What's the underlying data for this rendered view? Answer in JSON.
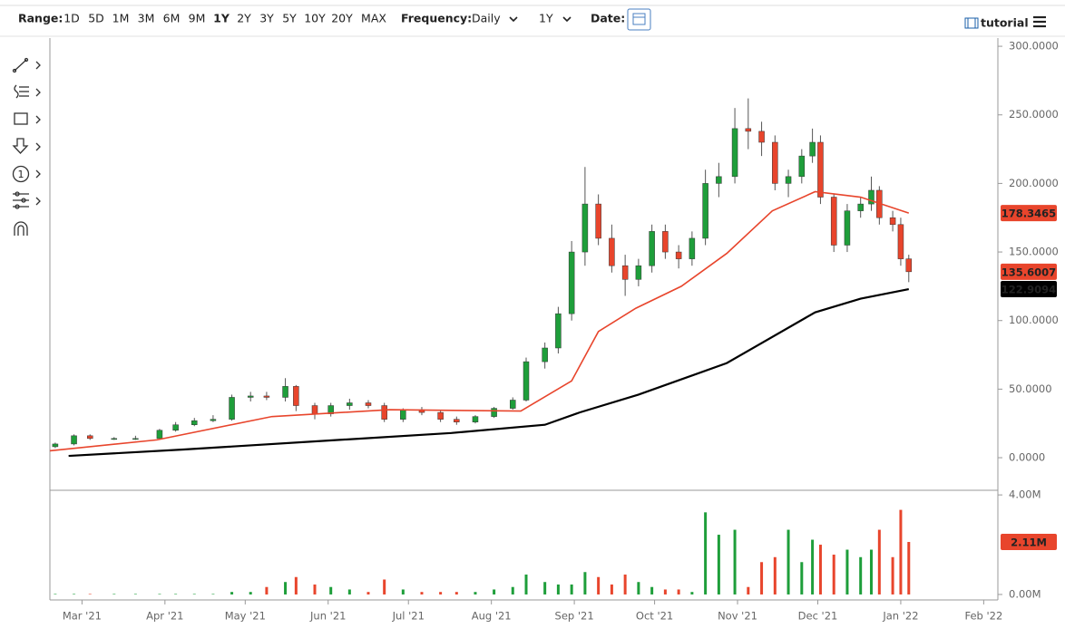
{
  "toolbar": {
    "range_label": "Range:",
    "ranges": [
      "1D",
      "5D",
      "1M",
      "3M",
      "6M",
      "9M",
      "1Y",
      "2Y",
      "3Y",
      "5Y",
      "10Y",
      "20Y",
      "MAX"
    ],
    "selected_range": "1Y",
    "frequency_label": "Frequency:",
    "frequency": "Daily",
    "period": "1Y",
    "date_label": "Date:",
    "tutorial": "tutorial"
  },
  "left_tools": {
    "counter_icon": "1"
  },
  "chart_data": [
    {
      "type": "candlestick",
      "up_color": "#1e9e3a",
      "down_color": "#e8452c",
      "xlim": [
        0,
        354.3
      ],
      "ylim": [
        -23.1,
        306
      ],
      "yticks": [
        {
          "value": 0,
          "label": "0.0000"
        },
        {
          "value": 50,
          "label": "50.0000"
        },
        {
          "value": 100,
          "label": "100.0000"
        },
        {
          "value": 150,
          "label": "150.0000"
        },
        {
          "value": 200,
          "label": "200.0000"
        },
        {
          "value": 250,
          "label": "250.0000"
        },
        {
          "value": 300,
          "label": "300.0000"
        }
      ],
      "x": [
        2,
        9,
        15,
        24,
        32,
        41,
        47,
        54,
        61,
        68,
        75,
        81,
        88,
        92,
        99,
        105,
        112,
        119,
        125,
        132,
        139,
        146,
        152,
        159,
        166,
        173,
        178,
        185,
        190,
        195,
        200,
        205,
        210,
        215,
        220,
        225,
        230,
        235,
        240,
        245,
        250,
        256,
        261,
        266,
        271,
        276,
        281,
        285,
        288,
        293,
        298,
        303,
        307,
        310,
        315,
        318,
        321
      ],
      "open": [
        8,
        10,
        16,
        14,
        14,
        14,
        20,
        24,
        27,
        28,
        44,
        45,
        44,
        52,
        38,
        32,
        38,
        40,
        38,
        28,
        35,
        33,
        28,
        26,
        30,
        36,
        42,
        70,
        80,
        105,
        150,
        185,
        160,
        140,
        130,
        140,
        165,
        150,
        145,
        160,
        200,
        205,
        240,
        238,
        230,
        200,
        205,
        220,
        230,
        190,
        155,
        180,
        185,
        195,
        175,
        170,
        145
      ],
      "high": [
        11,
        17,
        17,
        15,
        16,
        21,
        26,
        29,
        31,
        46,
        48,
        48,
        58,
        53,
        40,
        40,
        43,
        42,
        40,
        36,
        37,
        35,
        30,
        31,
        37,
        44,
        73,
        84,
        110,
        158,
        212,
        192,
        170,
        148,
        145,
        170,
        170,
        155,
        165,
        210,
        215,
        255,
        262,
        245,
        235,
        210,
        225,
        240,
        235,
        192,
        185,
        190,
        205,
        198,
        180,
        175,
        148
      ],
      "low": [
        7,
        9,
        13,
        13,
        13,
        13,
        19,
        23,
        26,
        27,
        41,
        42,
        41,
        34,
        28,
        30,
        35,
        36,
        26,
        26,
        31,
        26,
        24,
        25,
        29,
        35,
        41,
        65,
        76,
        100,
        140,
        155,
        135,
        118,
        125,
        135,
        145,
        138,
        140,
        155,
        190,
        200,
        225,
        220,
        195,
        190,
        200,
        215,
        185,
        150,
        150,
        175,
        180,
        170,
        165,
        140,
        128
      ],
      "close": [
        10,
        16,
        14,
        14,
        14,
        20,
        24,
        27,
        28,
        44,
        45,
        44,
        52,
        38,
        32,
        38,
        40,
        38,
        28,
        35,
        33,
        28,
        26,
        30,
        36,
        42,
        70,
        80,
        105,
        150,
        185,
        160,
        140,
        130,
        140,
        165,
        150,
        145,
        160,
        200,
        205,
        240,
        238,
        230,
        200,
        205,
        220,
        230,
        190,
        155,
        180,
        185,
        195,
        175,
        170,
        145,
        135.6007
      ],
      "series": [
        {
          "color": "#e8452c",
          "x": [
            0,
            40,
            83,
            127,
            176,
            195,
            205,
            219,
            236,
            253,
            270,
            286,
            303,
            321
          ],
          "values": [
            5,
            13,
            30,
            35,
            34,
            56,
            92,
            109,
            125,
            149,
            180,
            194,
            190,
            178.3465
          ]
        },
        {
          "color": "#000000",
          "x": [
            7,
            50,
            100,
            150,
            185,
            198,
            220,
            253,
            286,
            303,
            321
          ],
          "values": [
            1.3,
            6,
            12,
            18,
            24,
            33,
            46,
            69,
            106,
            116,
            122.9094
          ]
        }
      ],
      "tags": [
        {
          "value": 178.3465,
          "color": "#e8452c"
        },
        {
          "value": 135.6007,
          "color": "#e8452c"
        },
        {
          "value": 122.9094,
          "color": "#000000"
        }
      ]
    },
    {
      "type": "bar",
      "xlim": [
        0,
        354.3
      ],
      "ylim": [
        -0.22,
        4.15
      ],
      "yticks": [
        {
          "value": 0,
          "label": "0.00M"
        },
        {
          "value": 4,
          "label": "4.00M"
        }
      ],
      "xticks": [
        {
          "value": 12,
          "label": "Mar '21"
        },
        {
          "value": 43,
          "label": "Apr '21"
        },
        {
          "value": 73,
          "label": "May '21"
        },
        {
          "value": 104,
          "label": "Jun '21"
        },
        {
          "value": 134,
          "label": "Jul '21"
        },
        {
          "value": 165,
          "label": "Aug '21"
        },
        {
          "value": 196,
          "label": "Sep '21"
        },
        {
          "value": 226,
          "label": "Oct '21"
        },
        {
          "value": 257,
          "label": "Nov '21"
        },
        {
          "value": 287,
          "label": "Dec '21"
        },
        {
          "value": 318,
          "label": "Jan '22"
        },
        {
          "value": 349,
          "label": "Feb '22"
        }
      ],
      "x": [
        2,
        9,
        15,
        24,
        32,
        41,
        47,
        54,
        61,
        68,
        75,
        81,
        88,
        92,
        99,
        105,
        112,
        119,
        125,
        132,
        139,
        146,
        152,
        159,
        166,
        173,
        178,
        185,
        190,
        195,
        200,
        205,
        210,
        215,
        220,
        225,
        230,
        235,
        240,
        245,
        250,
        256,
        261,
        266,
        271,
        276,
        281,
        285,
        288,
        293,
        298,
        303,
        307,
        310,
        315,
        318,
        321
      ],
      "values": [
        0.02,
        0.02,
        0.02,
        0.02,
        0.02,
        0.02,
        0.02,
        0.02,
        0.02,
        0.1,
        0.1,
        0.3,
        0.5,
        0.7,
        0.4,
        0.3,
        0.2,
        0.1,
        0.6,
        0.2,
        0.1,
        0.1,
        0.1,
        0.1,
        0.2,
        0.3,
        0.8,
        0.5,
        0.4,
        0.4,
        0.9,
        0.7,
        0.4,
        0.8,
        0.5,
        0.3,
        0.2,
        0.2,
        0.1,
        3.3,
        2.4,
        2.6,
        0.3,
        1.3,
        1.5,
        2.6,
        1.3,
        2.2,
        2.0,
        1.6,
        1.8,
        1.5,
        1.8,
        2.6,
        1.5,
        3.4,
        2.11
      ],
      "tags": [
        {
          "value": 2.11,
          "label": "2.11M",
          "color": "#e8452c"
        }
      ]
    }
  ]
}
